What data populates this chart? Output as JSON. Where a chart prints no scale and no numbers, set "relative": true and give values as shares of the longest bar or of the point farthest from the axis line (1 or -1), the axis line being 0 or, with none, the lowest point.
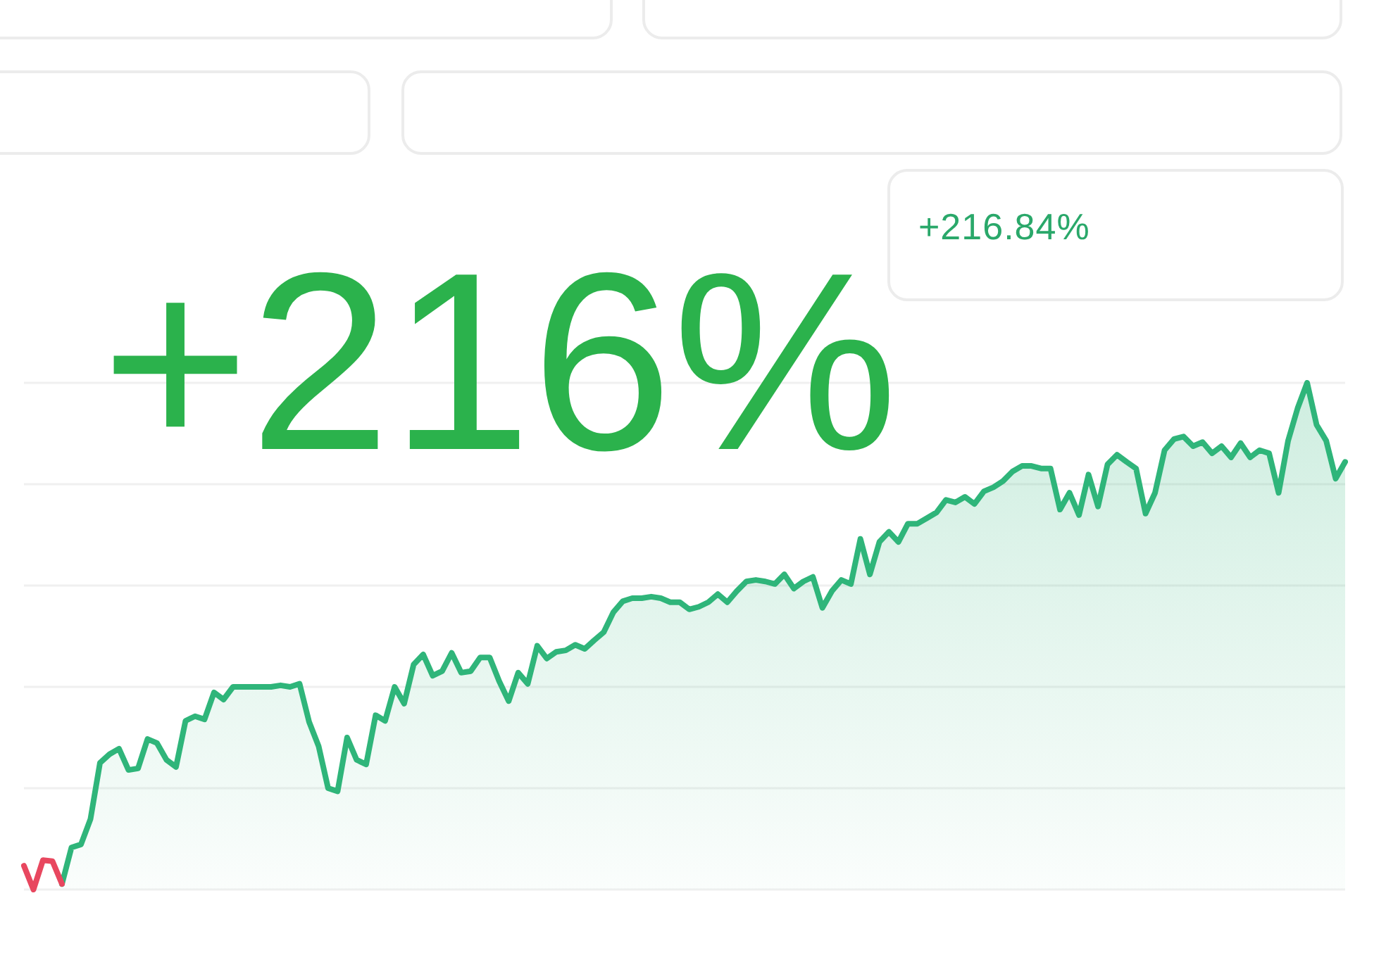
{
  "chart_data": {
    "type": "area",
    "relative": true,
    "grid": "y",
    "line_style": "solid",
    "annotations": [
      "+216%",
      "+216.84%"
    ],
    "categories": [
      null,
      null,
      null,
      null,
      null,
      null,
      null,
      null,
      null,
      null,
      null,
      null,
      null,
      null,
      null,
      null,
      null,
      null,
      null,
      null,
      null,
      null,
      null,
      null,
      null,
      null,
      null,
      null,
      null,
      null,
      null,
      null,
      null,
      null,
      null,
      null,
      null,
      null,
      null,
      null,
      null,
      null,
      null,
      null,
      null,
      null,
      null,
      null,
      null,
      null,
      null,
      null,
      null,
      null,
      null,
      null,
      null,
      null,
      null,
      null,
      null,
      null,
      null,
      null,
      null,
      null,
      null,
      null,
      null,
      null,
      null,
      null,
      null,
      null,
      null,
      null,
      null,
      null,
      null,
      null,
      null,
      null,
      null,
      null,
      null,
      null,
      null,
      null,
      null,
      null,
      null,
      null,
      null,
      null,
      null,
      null,
      null,
      null,
      null,
      null,
      null,
      null,
      null,
      null,
      null,
      null,
      null,
      null,
      null,
      null,
      null,
      null,
      null,
      null,
      null,
      null,
      null,
      null,
      null,
      null,
      null,
      null,
      null,
      null,
      null,
      null,
      null,
      null,
      null,
      null,
      null,
      null,
      null,
      null,
      null,
      null,
      null,
      null,
      null,
      null
    ],
    "series": [
      {
        "type": "line",
        "color": "#e8475f",
        "values": [
          0.047,
          0,
          0.058,
          0.056,
          0.011,
          null,
          null,
          null,
          null,
          null,
          null,
          null,
          null,
          null,
          null,
          null,
          null,
          null,
          null,
          null,
          null,
          null,
          null,
          null,
          null,
          null,
          null,
          null,
          null,
          null,
          null,
          null,
          null,
          null,
          null,
          null,
          null,
          null,
          null,
          null,
          null,
          null,
          null,
          null,
          null,
          null,
          null,
          null,
          null,
          null,
          null,
          null,
          null,
          null,
          null,
          null,
          null,
          null,
          null,
          null,
          null,
          null,
          null,
          null,
          null,
          null,
          null,
          null,
          null,
          null,
          null,
          null,
          null,
          null,
          null,
          null,
          null,
          null,
          null,
          null,
          null,
          null,
          null,
          null,
          null,
          null,
          null,
          null,
          null,
          null,
          null,
          null,
          null,
          null,
          null,
          null,
          null,
          null,
          null,
          null,
          null,
          null,
          null,
          null,
          null,
          null,
          null,
          null,
          null,
          null,
          null,
          null,
          null,
          null,
          null,
          null,
          null,
          null,
          null,
          null,
          null,
          null,
          null,
          null,
          null,
          null,
          null,
          null,
          null,
          null,
          null,
          null,
          null,
          null,
          null,
          null,
          null,
          null,
          null,
          null
        ]
      },
      {
        "color": "#2fb57a",
        "values": [
          null,
          null,
          null,
          null,
          0.011,
          0.083,
          0.089,
          0.139,
          0.25,
          0.267,
          0.278,
          0.236,
          0.239,
          0.297,
          0.289,
          0.256,
          0.242,
          0.333,
          0.342,
          0.336,
          0.389,
          0.375,
          0.4,
          0.4,
          0.4,
          0.4,
          0.4,
          0.403,
          0.4,
          0.406,
          0.331,
          0.283,
          0.2,
          0.194,
          0.3,
          0.256,
          0.247,
          0.344,
          0.333,
          0.4,
          0.367,
          0.444,
          0.464,
          0.422,
          0.431,
          0.467,
          0.428,
          0.431,
          0.458,
          0.458,
          0.411,
          0.372,
          0.428,
          0.406,
          0.481,
          0.456,
          0.469,
          0.472,
          0.483,
          0.475,
          0.492,
          0.508,
          0.547,
          0.569,
          0.575,
          0.575,
          0.578,
          0.575,
          0.567,
          0.567,
          0.553,
          0.558,
          0.567,
          0.583,
          0.567,
          0.589,
          0.608,
          0.611,
          0.608,
          0.603,
          0.622,
          0.594,
          0.608,
          0.617,
          0.556,
          0.589,
          0.611,
          0.603,
          0.692,
          0.622,
          0.686,
          0.706,
          0.686,
          0.722,
          0.722,
          0.733,
          0.744,
          0.769,
          0.764,
          0.775,
          0.761,
          0.786,
          0.794,
          0.806,
          0.825,
          0.836,
          0.836,
          0.831,
          0.831,
          0.75,
          0.783,
          0.739,
          0.819,
          0.756,
          0.839,
          0.858,
          0.844,
          0.831,
          0.742,
          0.783,
          0.867,
          0.889,
          0.894,
          0.875,
          0.883,
          0.861,
          0.875,
          0.853,
          0.881,
          0.853,
          0.867,
          0.861,
          0.783,
          0.886,
          0.95,
          1,
          0.917,
          0.886,
          0.811,
          0.844
        ]
      }
    ]
  }
}
